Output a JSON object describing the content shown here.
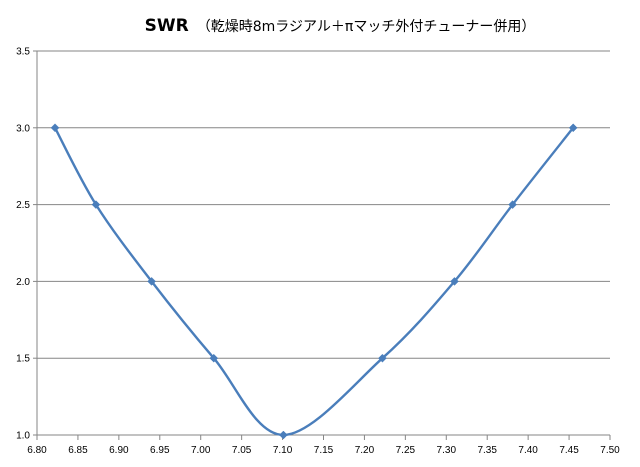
{
  "chart_data": {
    "type": "scatter",
    "title_main": "SWR",
    "title_sub": "（乾燥時8mラジアル＋πマッチ外付チューナー併用）",
    "xlabel": "",
    "ylabel": "",
    "xlim": [
      6.8,
      7.5
    ],
    "ylim": [
      1.0,
      3.5
    ],
    "x_ticks": [
      "6.80",
      "6.85",
      "6.90",
      "6.95",
      "7.00",
      "7.05",
      "7.10",
      "7.15",
      "7.20",
      "7.25",
      "7.30",
      "7.35",
      "7.40",
      "7.45",
      "7.50"
    ],
    "y_ticks": [
      "1.0",
      "1.5",
      "2.0",
      "2.5",
      "3.0",
      "3.5"
    ],
    "grid": "horizontal",
    "legend": "none",
    "smooth": true,
    "marker": "diamond",
    "color": "#4a7ebb",
    "series": [
      {
        "x": [
          6.822,
          6.872,
          6.94,
          7.016,
          7.101,
          7.222,
          7.31,
          7.381,
          7.455
        ],
        "y": [
          3.0,
          2.5,
          2.0,
          1.5,
          1.0,
          1.5,
          2.0,
          2.5,
          3.0
        ]
      }
    ]
  }
}
